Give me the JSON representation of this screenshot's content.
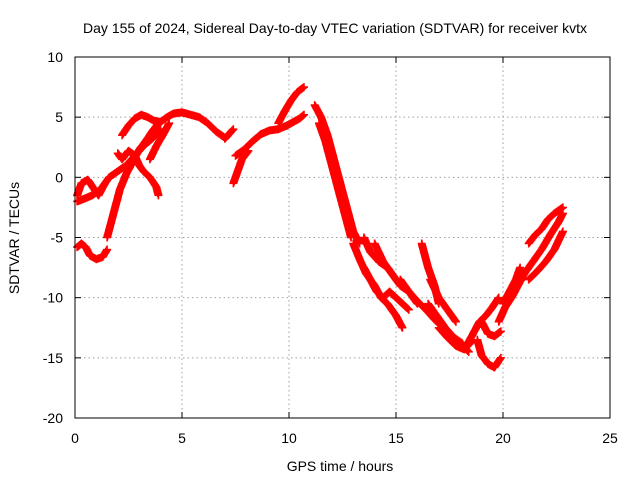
{
  "chart_data": {
    "type": "scatter",
    "title": "Day 155 of 2024, Sidereal Day-to-day VTEC variation (SDTVAR) for receiver kvtx",
    "xlabel": "GPS time / hours",
    "ylabel": "SDTVAR / TECUs",
    "xlim": [
      0,
      25
    ],
    "ylim": [
      -20,
      10
    ],
    "xticks": [
      0,
      5,
      10,
      15,
      20,
      25
    ],
    "yticks": [
      -20,
      -15,
      -10,
      -5,
      0,
      5,
      10
    ],
    "grid": true,
    "marker": "plus",
    "color": "#ff0000",
    "tracks": [
      {
        "x": [
          0.1,
          0.4,
          0.8,
          1.2,
          1.6,
          2.0,
          2.4,
          2.8,
          3.2,
          3.6,
          4.0
        ],
        "y": [
          -2.0,
          -1.8,
          -1.5,
          -1.0,
          0.0,
          0.5,
          1.0,
          1.8,
          2.6,
          3.2,
          4.0
        ]
      },
      {
        "x": [
          0.1,
          0.3,
          0.6,
          0.9,
          1.1,
          1.4
        ],
        "y": [
          -1.5,
          -0.5,
          -0.2,
          -1.0,
          -1.5,
          -0.5
        ]
      },
      {
        "x": [
          0.1,
          0.3,
          0.5,
          0.7,
          1.0,
          1.3,
          1.5
        ],
        "y": [
          -5.8,
          -5.5,
          -5.8,
          -6.5,
          -6.8,
          -6.6,
          -6.0
        ]
      },
      {
        "x": [
          1.5,
          1.8,
          2.1,
          2.4,
          2.7,
          3.0,
          3.3,
          3.6,
          3.9
        ],
        "y": [
          -5.0,
          -3.0,
          -1.0,
          0.3,
          1.3,
          2.3,
          3.0,
          3.8,
          4.5
        ]
      },
      {
        "x": [
          2.0,
          2.2,
          2.5,
          2.8,
          3.0,
          3.2,
          3.5,
          3.8,
          3.9
        ],
        "y": [
          2.0,
          1.5,
          2.2,
          1.8,
          1.0,
          0.5,
          0.0,
          -0.8,
          -1.5
        ]
      },
      {
        "x": [
          2.2,
          2.5,
          2.8,
          3.1,
          3.4,
          3.7,
          4.0
        ],
        "y": [
          3.5,
          4.3,
          4.9,
          5.2,
          5.0,
          4.7,
          4.6
        ]
      },
      {
        "x": [
          4.0,
          4.3,
          4.6,
          5.0,
          5.4,
          5.8,
          6.2,
          6.6,
          7.0
        ],
        "y": [
          4.6,
          5.0,
          5.3,
          5.4,
          5.2,
          5.0,
          4.5,
          3.8,
          3.3
        ]
      },
      {
        "x": [
          3.5,
          3.8,
          4.1,
          4.4
        ],
        "y": [
          1.5,
          2.6,
          3.5,
          4.5
        ]
      },
      {
        "x": [
          7.0,
          7.2,
          7.4
        ],
        "y": [
          3.2,
          3.6,
          4.0
        ]
      },
      {
        "x": [
          7.4,
          7.6,
          7.8,
          8.1
        ],
        "y": [
          -0.5,
          0.5,
          1.5,
          2.2
        ]
      },
      {
        "x": [
          7.5,
          7.9,
          8.3,
          8.7,
          9.1,
          9.5,
          9.9
        ],
        "y": [
          1.8,
          2.3,
          3.0,
          3.6,
          3.9,
          4.0,
          4.3
        ]
      },
      {
        "x": [
          9.5,
          9.8,
          10.1,
          10.4,
          10.7
        ],
        "y": [
          4.5,
          5.5,
          6.4,
          7.1,
          7.5
        ]
      },
      {
        "x": [
          9.9,
          10.2,
          10.5,
          10.7
        ],
        "y": [
          4.3,
          4.6,
          4.9,
          5.2
        ]
      },
      {
        "x": [
          11.2,
          11.5,
          11.8,
          12.1,
          12.4,
          12.7,
          13.0,
          13.3
        ],
        "y": [
          6.0,
          5.0,
          3.5,
          1.5,
          -0.5,
          -2.5,
          -4.5,
          -5.5
        ]
      },
      {
        "x": [
          11.4,
          11.7,
          12.0,
          12.3,
          12.6,
          12.9
        ],
        "y": [
          4.5,
          3.0,
          1.0,
          -1.0,
          -3.0,
          -5.0
        ]
      },
      {
        "x": [
          13.0,
          13.3,
          13.6,
          14.0,
          14.3,
          14.6,
          15.0,
          15.3
        ],
        "y": [
          -5.5,
          -6.8,
          -8.0,
          -9.0,
          -10.0,
          -10.5,
          -11.5,
          -12.5
        ]
      },
      {
        "x": [
          13.5,
          13.8,
          14.1,
          14.4,
          14.7,
          15.0,
          15.3,
          15.6
        ],
        "y": [
          -7.5,
          -8.5,
          -9.5,
          -10.0,
          -9.5,
          -10.0,
          -10.5,
          -11.0
        ]
      },
      {
        "x": [
          13.5,
          13.8,
          14.2,
          14.6,
          15.0
        ],
        "y": [
          -5.0,
          -6.2,
          -7.0,
          -7.5,
          -8.5
        ]
      },
      {
        "x": [
          14.0,
          14.4,
          14.8,
          15.2,
          15.6,
          16.0
        ],
        "y": [
          -5.5,
          -7.0,
          -8.0,
          -9.0,
          -9.5,
          -10.5
        ]
      },
      {
        "x": [
          15.2,
          15.6,
          16.0,
          16.4,
          16.8,
          17.2,
          17.6,
          18.0,
          18.4
        ],
        "y": [
          -8.5,
          -9.5,
          -10.3,
          -11.0,
          -11.8,
          -12.5,
          -13.2,
          -13.8,
          -14.5
        ]
      },
      {
        "x": [
          16.2,
          16.5,
          16.8,
          17.0
        ],
        "y": [
          -5.5,
          -7.5,
          -9.0,
          -10.5
        ]
      },
      {
        "x": [
          17.0,
          17.4,
          17.8,
          18.2,
          18.6
        ],
        "y": [
          -12.5,
          -13.3,
          -14.0,
          -14.3,
          -13.5
        ]
      },
      {
        "x": [
          16.5,
          16.9,
          17.3,
          17.7,
          18.1
        ],
        "y": [
          -10.5,
          -11.5,
          -12.5,
          -13.3,
          -13.8
        ]
      },
      {
        "x": [
          16.6,
          17.0,
          17.4,
          17.8
        ],
        "y": [
          -8.5,
          -10.0,
          -11.0,
          -12.0
        ]
      },
      {
        "x": [
          18.3,
          18.6,
          18.9,
          19.2,
          19.5,
          19.8
        ],
        "y": [
          -14.0,
          -13.0,
          -12.0,
          -11.5,
          -10.8,
          -10.0
        ]
      },
      {
        "x": [
          18.8,
          19.0,
          19.3,
          19.6,
          19.9
        ],
        "y": [
          -13.5,
          -14.8,
          -15.5,
          -15.8,
          -15.0
        ]
      },
      {
        "x": [
          19.0,
          19.3,
          19.6,
          19.9
        ],
        "y": [
          -12.0,
          -13.0,
          -13.2,
          -12.8
        ]
      },
      {
        "x": [
          19.8,
          20.1,
          20.4,
          20.7,
          21.0
        ],
        "y": [
          -12.0,
          -10.8,
          -10.0,
          -9.0,
          -8.0
        ]
      },
      {
        "x": [
          20.0,
          20.3,
          20.6,
          20.8
        ],
        "y": [
          -10.5,
          -9.5,
          -8.5,
          -7.5
        ]
      },
      {
        "x": [
          21.0,
          21.4,
          21.8,
          22.2,
          22.6,
          22.8
        ],
        "y": [
          -8.0,
          -7.0,
          -6.0,
          -4.8,
          -3.7,
          -3.0
        ]
      },
      {
        "x": [
          21.2,
          21.5,
          21.8,
          22.1,
          22.4,
          22.8
        ],
        "y": [
          -5.5,
          -4.8,
          -4.3,
          -3.5,
          -3.0,
          -2.5
        ]
      },
      {
        "x": [
          21.2,
          21.6,
          22.0,
          22.4,
          22.8
        ],
        "y": [
          -8.5,
          -7.8,
          -7.0,
          -6.0,
          -4.5
        ]
      }
    ]
  }
}
